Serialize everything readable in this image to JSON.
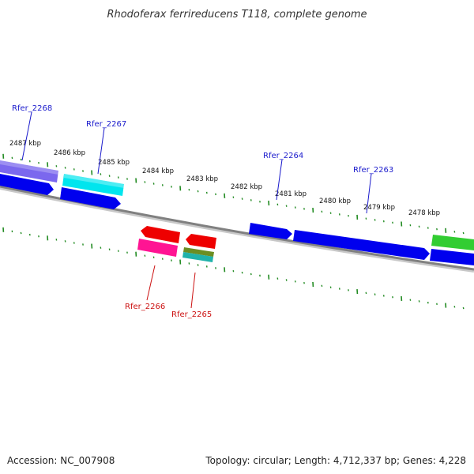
{
  "title": "Rhodoferax ferrireducens T118, complete genome",
  "footer": {
    "accession": "Accession: NC_007908",
    "summary": "Topology: circular; Length: 4,712,337 bp; Genes: 4,228"
  },
  "colors": {
    "backbone": "#808080",
    "tick": "#228b22",
    "forward_label": "#1a1acc",
    "reverse_label": "#cc1111"
  },
  "ticks": [
    {
      "label": "2487 kbp"
    },
    {
      "label": "2486 kbp"
    },
    {
      "label": "2485 kbp"
    },
    {
      "label": "2484 kbp"
    },
    {
      "label": "2483 kbp"
    },
    {
      "label": "2482 kbp"
    },
    {
      "label": "2481 kbp"
    },
    {
      "label": "2480 kbp"
    },
    {
      "label": "2479 kbp"
    },
    {
      "label": "2478 kbp"
    }
  ],
  "gene_labels": [
    {
      "text": "Rfer_2268",
      "strand": "forward"
    },
    {
      "text": "Rfer_2267",
      "strand": "forward"
    },
    {
      "text": "Rfer_2264",
      "strand": "forward"
    },
    {
      "text": "Rfer_2263",
      "strand": "forward"
    },
    {
      "text": "Rfer_2266",
      "strand": "reverse"
    },
    {
      "text": "Rfer_2265",
      "strand": "reverse"
    }
  ],
  "features": [
    {
      "name": "feature-purple",
      "color": "#7b68ee"
    },
    {
      "name": "feature-cyan",
      "color": "#00e5ee"
    },
    {
      "name": "feature-blue-1",
      "color": "#0000ee"
    },
    {
      "name": "feature-blue-2",
      "color": "#0000ee"
    },
    {
      "name": "feature-blue-3",
      "color": "#0000ee"
    },
    {
      "name": "feature-blue-4",
      "color": "#0000ee"
    },
    {
      "name": "feature-blue-5",
      "color": "#0000ee"
    },
    {
      "name": "feature-green",
      "color": "#32cd32"
    },
    {
      "name": "feature-red-1",
      "color": "#ee0000"
    },
    {
      "name": "feature-red-2",
      "color": "#ee0000"
    },
    {
      "name": "feature-pink",
      "color": "#ff1493"
    },
    {
      "name": "feature-olive",
      "color": "#6b8e23"
    },
    {
      "name": "feature-teal",
      "color": "#20b2aa"
    }
  ]
}
